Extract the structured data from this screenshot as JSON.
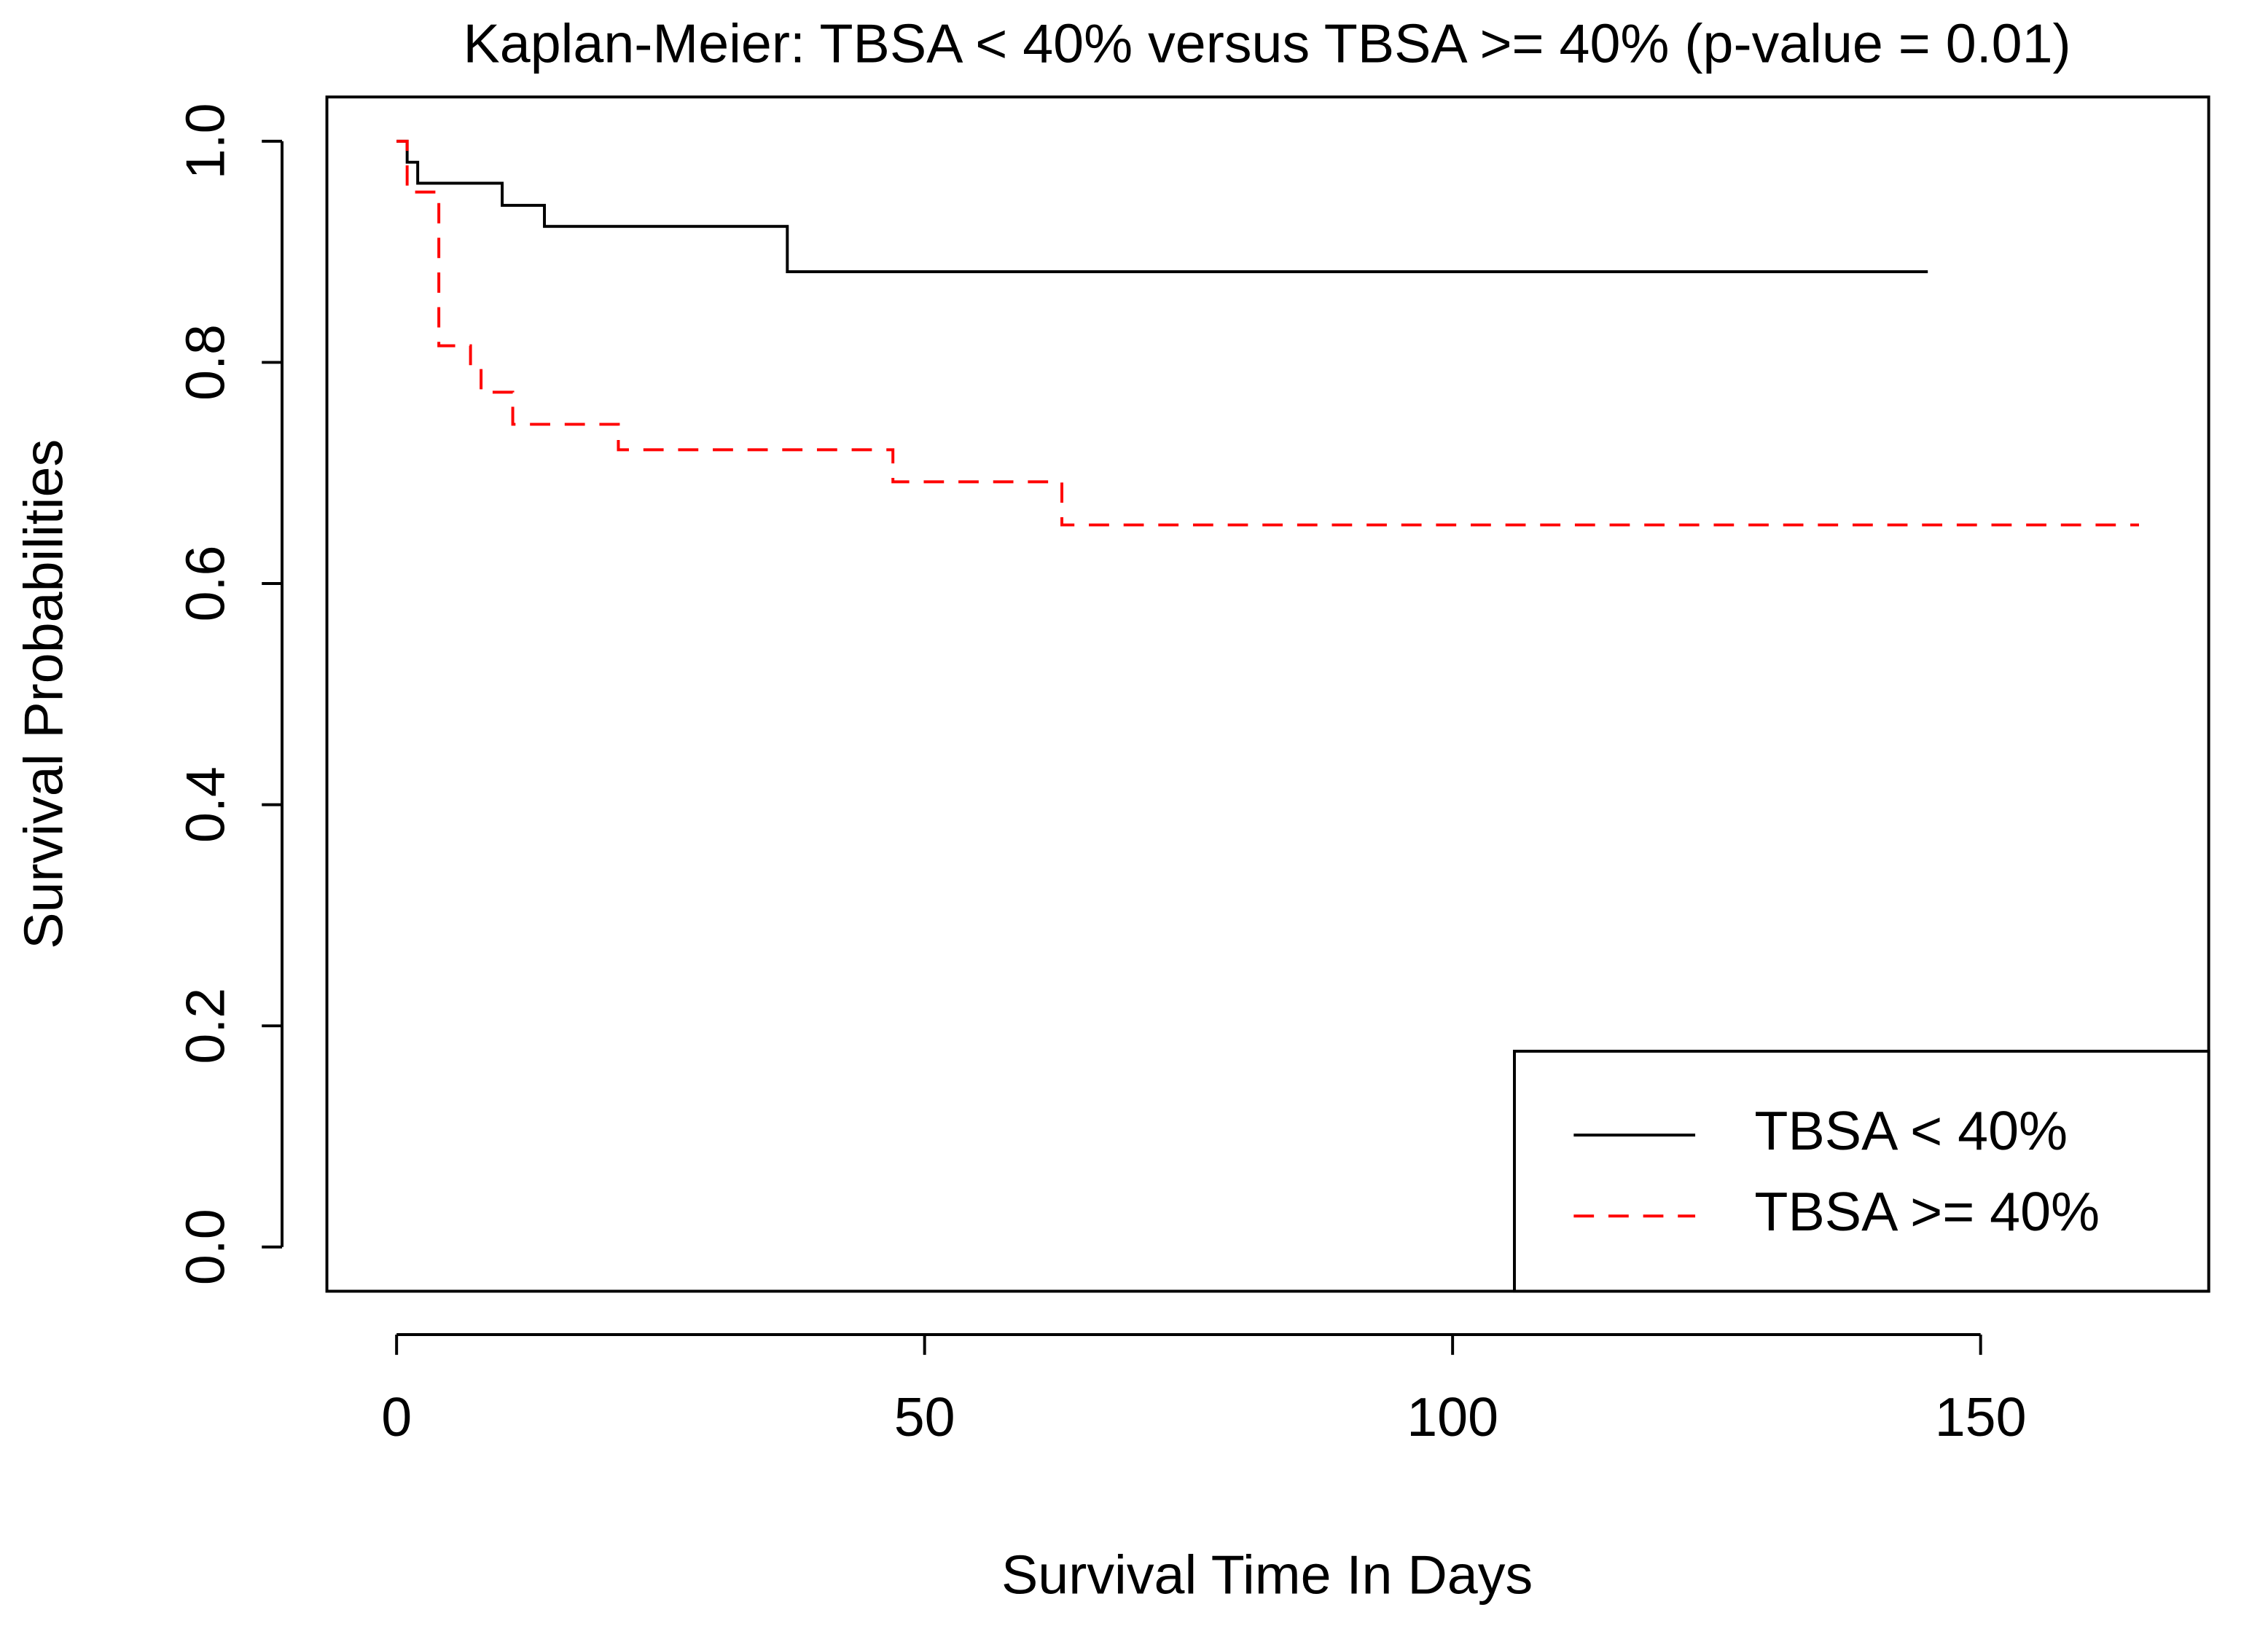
{
  "chart_data": {
    "type": "line",
    "drawstyle": "steps-post",
    "title": "Kaplan-Meier: TBSA < 40% versus TBSA >= 40% (p-value = 0.01)",
    "x_label": "Survival Time In Days",
    "y_label": "Survival Probabilities",
    "series": [
      {
        "name": "TBSA < 40%",
        "color": "#000000",
        "linestyle": "solid",
        "x": [
          0,
          1,
          2,
          10,
          14,
          37,
          145
        ],
        "values": [
          1,
          0.981,
          0.962,
          0.942,
          0.923,
          0.882,
          0.882
        ]
      },
      {
        "name": "TBSA >= 40%",
        "color": "#ff0000",
        "linestyle": "dashed",
        "x": [
          0,
          1,
          4,
          7,
          8,
          11,
          21,
          47,
          63,
          165
        ],
        "values": [
          1,
          0.954,
          0.815,
          0.794,
          0.773,
          0.744,
          0.721,
          0.692,
          0.653,
          0.653
        ]
      }
    ],
    "xlim": [
      -6.6,
      171.6
    ],
    "ylim": [
      -0.04,
      1.04
    ],
    "xticks": [
      0,
      50,
      100,
      150
    ],
    "yticks": [
      {
        "value": 0,
        "label": "0.0"
      },
      0.2,
      0.4,
      0.6,
      0.8,
      {
        "value": 1,
        "label": "1.0"
      }
    ],
    "legend": "bottomright"
  }
}
